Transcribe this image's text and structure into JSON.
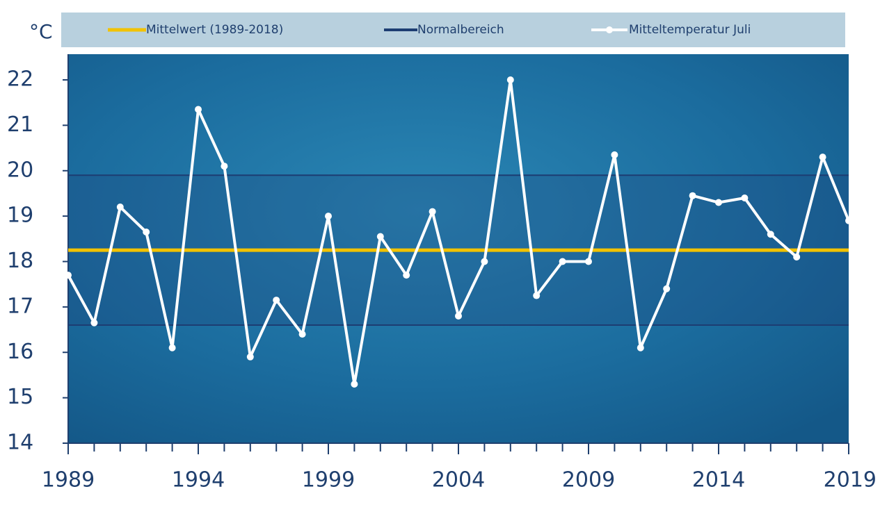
{
  "chart_data": {
    "type": "line",
    "y_label": "°C",
    "x": [
      1989,
      1990,
      1991,
      1992,
      1993,
      1994,
      1995,
      1996,
      1997,
      1998,
      1999,
      2000,
      2001,
      2002,
      2003,
      2004,
      2005,
      2006,
      2007,
      2008,
      2009,
      2010,
      2011,
      2012,
      2013,
      2014,
      2015,
      2016,
      2017,
      2018,
      2019
    ],
    "series": [
      {
        "name": "Mitteltemperatur Juli",
        "color": "#ffffff",
        "values": [
          17.7,
          16.65,
          19.2,
          18.65,
          16.1,
          21.35,
          20.1,
          15.9,
          17.15,
          16.4,
          19.0,
          15.3,
          18.55,
          17.7,
          19.1,
          16.8,
          18.0,
          22.0,
          17.25,
          18.0,
          18.0,
          20.35,
          16.1,
          17.4,
          19.45,
          19.3,
          19.4,
          18.6,
          18.1,
          20.3,
          18.9
        ]
      }
    ],
    "mean": {
      "name": "Mittelwert (1989-2018)",
      "color": "#f2c200",
      "value": 18.25
    },
    "normal_range": {
      "name": "Normalbereich",
      "color": "#1d3d72",
      "values": [
        16.6,
        19.9
      ]
    },
    "xlim": [
      1989,
      2019
    ],
    "xticks": [
      1989,
      1994,
      1999,
      2004,
      2009,
      2014,
      2019
    ],
    "ylim": [
      14,
      22
    ],
    "yticks": [
      14,
      15,
      16,
      17,
      18,
      19,
      20,
      21,
      22
    ]
  }
}
